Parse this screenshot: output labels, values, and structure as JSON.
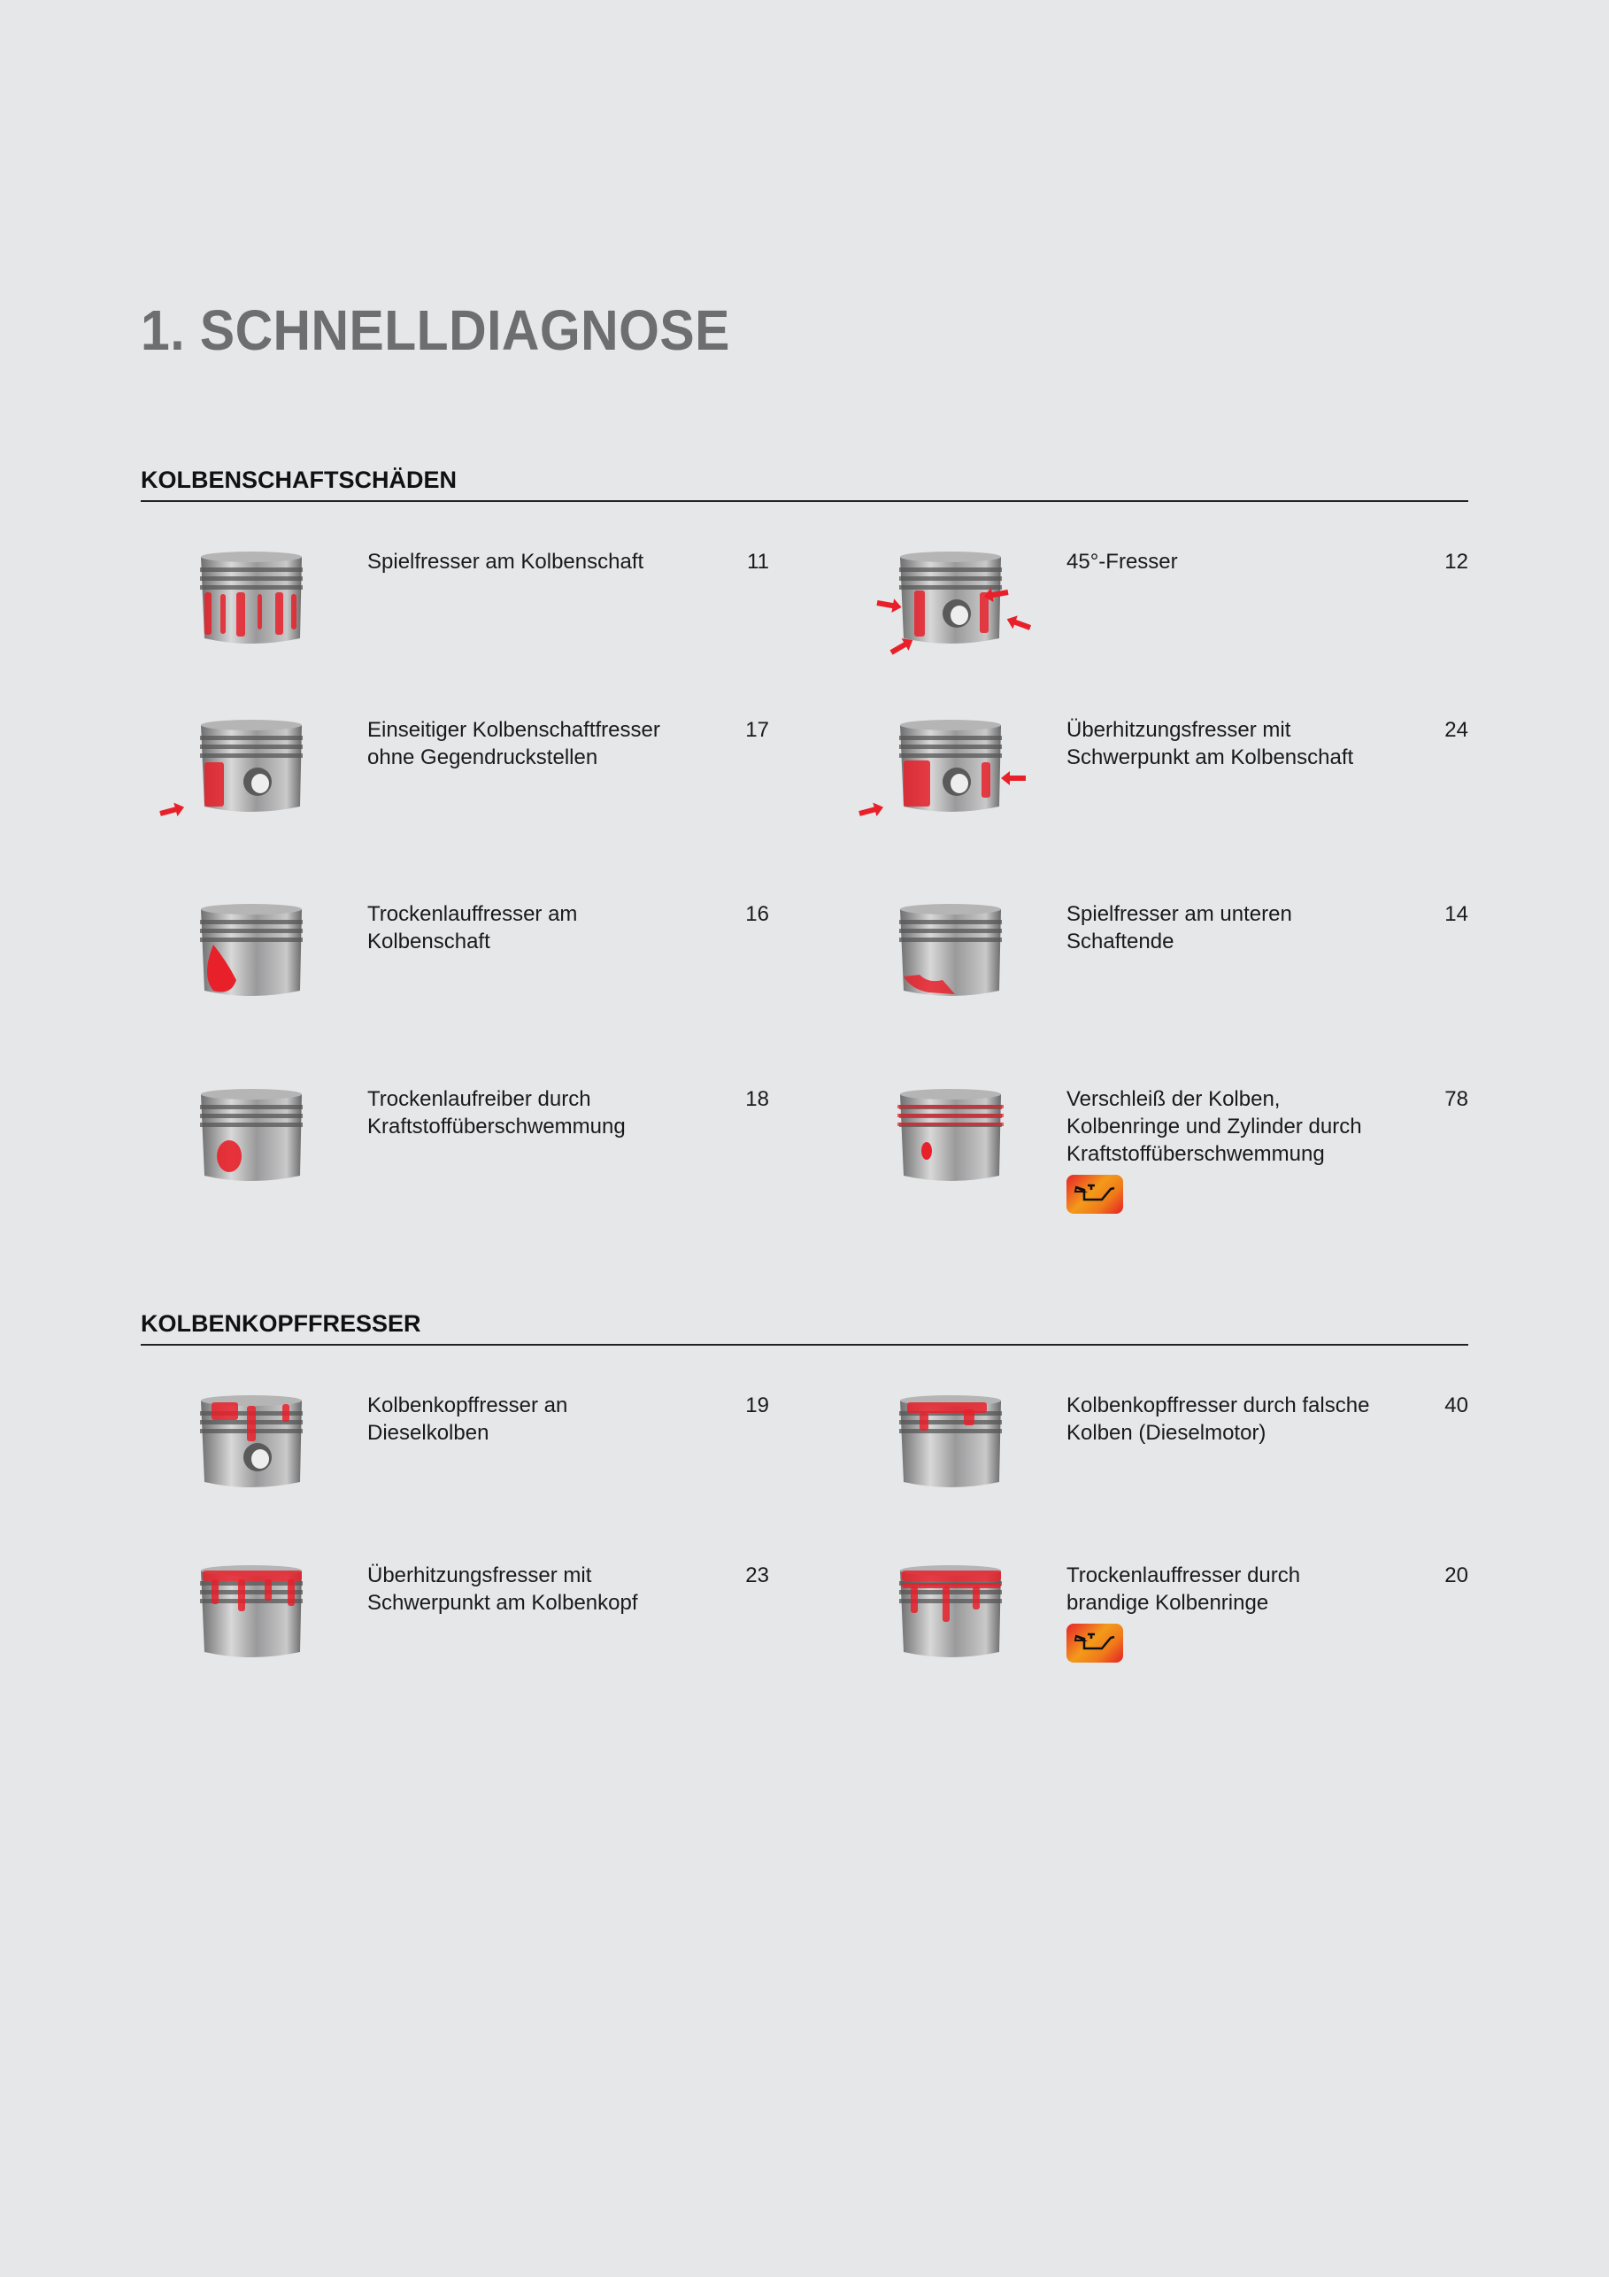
{
  "page_title": "1. SCHNELLDIAGNOSE",
  "sections": [
    {
      "heading": "KOLBENSCHAFTSCHÄDEN",
      "items": [
        {
          "label": "Spielfresser am Kolbenschaft",
          "page": "11",
          "damage": "vertical-streaks"
        },
        {
          "label": "45°-Fresser",
          "page": "12",
          "damage": "diagonal-arrows"
        },
        {
          "label": "Einseitiger Kolbenschaftfresser ohne Gegendruckstellen",
          "page": "17",
          "damage": "one-side-arrow"
        },
        {
          "label": "Überhitzungsfresser mit Schwerpunkt am Kolbenschaft",
          "page": "24",
          "damage": "two-side-arrows"
        },
        {
          "label": "Trockenlauffresser am Kolbenschaft",
          "page": "16",
          "damage": "large-spot"
        },
        {
          "label": "Spielfresser am unteren Schaftende",
          "page": "14",
          "damage": "bottom-edge"
        },
        {
          "label": "Trockenlaufreiber durch Kraftstoffüberschwemmung",
          "page": "18",
          "damage": "small-spot"
        },
        {
          "label": "Verschleiß der Kolben, Kolbenringe und Zylinder durch Kraftstoffüberschwemmung",
          "page": "78",
          "damage": "red-rings",
          "badge": "oil-can-icon"
        }
      ]
    },
    {
      "heading": "KOLBENKOPFFRESSER",
      "items": [
        {
          "label": "Kolbenkopffresser an Dieselkolben",
          "page": "19",
          "damage": "head-pin"
        },
        {
          "label": "Kolbenkopffresser durch falsche Kolben (Dieselmotor)",
          "page": "40",
          "damage": "head-top"
        },
        {
          "label": "Überhitzungsfresser mit Schwerpunkt am Kolbenkopf",
          "page": "23",
          "damage": "head-drips"
        },
        {
          "label": "Trockenlauffresser durch brandige Kolbenringe",
          "page": "20",
          "damage": "head-rings-drips",
          "badge": "oil-can-icon"
        }
      ]
    }
  ],
  "colors": {
    "title": "#6d6e70",
    "damage_red": "#e8202a",
    "badge_orange": "#f39a1a"
  }
}
